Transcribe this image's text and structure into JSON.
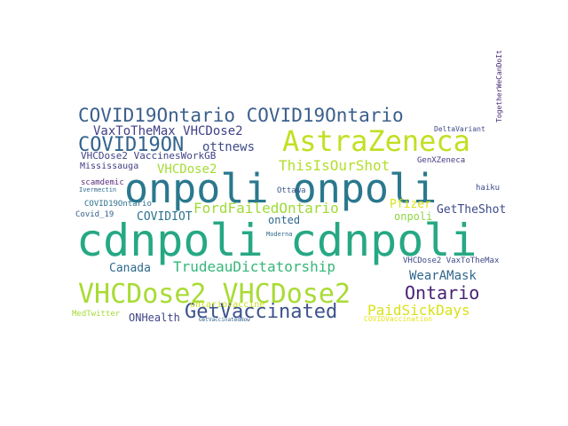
{
  "word_cloud": {
    "words": [
      {
        "text": "cdnpoli cdnpoli",
        "weight": 100,
        "color": "#26a884"
      },
      {
        "text": "onpoli onpoli",
        "weight": 88,
        "color": "#2a788e"
      },
      {
        "text": "AstraZeneca",
        "weight": 62,
        "color": "#c2df23"
      },
      {
        "text": "VHCDose2 VHCDose2",
        "weight": 58,
        "color": "#a8db34"
      },
      {
        "text": "COVID19Ontario COVID19Ontario",
        "weight": 50,
        "color": "#3b5f8c"
      },
      {
        "text": "COVID19ON",
        "weight": 46,
        "color": "#33638d"
      },
      {
        "text": "GetVaccinated",
        "weight": 44,
        "color": "#3b528b"
      },
      {
        "text": "Ontario",
        "weight": 42,
        "color": "#482173"
      },
      {
        "text": "ThisIsOurShot",
        "weight": 32,
        "color": "#b5de2b"
      },
      {
        "text": "FordFailedOntario",
        "weight": 32,
        "color": "#a0da39"
      },
      {
        "text": "TrudeauDictatorship",
        "weight": 32,
        "color": "#35b779"
      },
      {
        "text": "PaidSickDays",
        "weight": 32,
        "color": "#d8e219"
      },
      {
        "text": "ottnews",
        "weight": 28,
        "color": "#3e4a89"
      },
      {
        "text": "VaxToTheMax VHCDose2",
        "weight": 26,
        "color": "#424086"
      },
      {
        "text": "VHCDose2",
        "weight": 26,
        "color": "#a5db36"
      },
      {
        "text": "WearAMask",
        "weight": 26,
        "color": "#31688e"
      },
      {
        "text": "Canada",
        "weight": 24,
        "color": "#306a8e"
      },
      {
        "text": "COVIDIOT",
        "weight": 24,
        "color": "#2c728e"
      },
      {
        "text": "Pfizer",
        "weight": 22,
        "color": "#d8e219"
      },
      {
        "text": "GetTheShot",
        "weight": 22,
        "color": "#3e4a89"
      },
      {
        "text": "onpoli",
        "weight": 20,
        "color": "#8ed645"
      },
      {
        "text": "onted",
        "weight": 20,
        "color": "#31688e"
      },
      {
        "text": "ONHealth",
        "weight": 20,
        "color": "#414487"
      },
      {
        "text": "VHCDose2 VaccinesWorkGB",
        "weight": 18,
        "color": "#404387"
      },
      {
        "text": "Mississauga",
        "weight": 16,
        "color": "#433e85"
      },
      {
        "text": "ontariovaccine",
        "weight": 16,
        "color": "#c8e020"
      },
      {
        "text": "GenXZeneca",
        "weight": 14,
        "color": "#443983"
      },
      {
        "text": "VHCDose2 VaxToTheMax",
        "weight": 14,
        "color": "#3e4a89"
      },
      {
        "text": "COVID19Ontario",
        "weight": 14,
        "color": "#2d708e"
      },
      {
        "text": "Covid_19",
        "weight": 14,
        "color": "#35608d"
      },
      {
        "text": "MedTwitter",
        "weight": 14,
        "color": "#a5db36"
      },
      {
        "text": "Ottawa",
        "weight": 14,
        "color": "#38588c"
      },
      {
        "text": "haiku",
        "weight": 14,
        "color": "#3e4c8a"
      },
      {
        "text": "scamdemic",
        "weight": 14,
        "color": "#5c2b7d"
      },
      {
        "text": "DeltaVariant",
        "weight": 12,
        "color": "#3e4a89"
      },
      {
        "text": "TogetherWeCanDoIt",
        "weight": 12,
        "color": "#482677"
      },
      {
        "text": "COVIDVaccination",
        "weight": 12,
        "color": "#e7e419"
      },
      {
        "text": "Moderna",
        "weight": 10,
        "color": "#31688e"
      },
      {
        "text": "Ivermectin",
        "weight": 10,
        "color": "#31688e"
      },
      {
        "text": "GetVaccinatedNow",
        "weight": 10,
        "color": "#33638d"
      }
    ]
  }
}
